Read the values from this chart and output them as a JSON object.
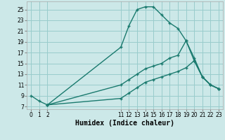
{
  "xlabel": "Humidex (Indice chaleur)",
  "bg_color": "#cce8e8",
  "grid_color": "#99cccc",
  "line_color": "#1a7a6e",
  "xtick_labels": [
    "0",
    "1",
    "2",
    "",
    "",
    "",
    "",
    "",
    "",
    "",
    "",
    "11",
    "12",
    "13",
    "14",
    "15",
    "16",
    "17",
    "18",
    "19",
    "20",
    "21",
    "22",
    "23"
  ],
  "xtick_visible": [
    0,
    1,
    2,
    11,
    12,
    13,
    14,
    15,
    16,
    17,
    18,
    19,
    20,
    21,
    22,
    23
  ],
  "line1_xi": [
    0,
    1,
    2,
    11,
    12,
    13,
    14,
    15,
    16,
    17,
    18,
    19,
    20,
    21,
    22,
    23
  ],
  "line1_y": [
    9,
    8,
    7.3,
    18,
    22,
    25,
    25.5,
    25.5,
    24,
    22.5,
    21.5,
    19.2,
    16,
    12.5,
    11,
    10.3
  ],
  "line2_xi": [
    2,
    11,
    12,
    13,
    14,
    15,
    16,
    17,
    18,
    19,
    20,
    21,
    22,
    23
  ],
  "line2_y": [
    7.3,
    11,
    12,
    13,
    14,
    14.5,
    15,
    16,
    16.5,
    19.2,
    15.5,
    12.5,
    11,
    10.3
  ],
  "line3_xi": [
    2,
    11,
    12,
    13,
    14,
    15,
    16,
    17,
    18,
    19,
    20,
    21,
    22,
    23
  ],
  "line3_y": [
    7.3,
    8.5,
    9.5,
    10.5,
    11.5,
    12,
    12.5,
    13,
    13.5,
    14.2,
    15.5,
    12.5,
    11,
    10.3
  ],
  "xlim": [
    -0.5,
    23.5
  ],
  "ylim": [
    6.5,
    26.5
  ],
  "yticks": [
    7,
    9,
    11,
    13,
    15,
    17,
    19,
    21,
    23,
    25
  ],
  "tick_fontsize": 5.5,
  "label_fontsize": 7
}
